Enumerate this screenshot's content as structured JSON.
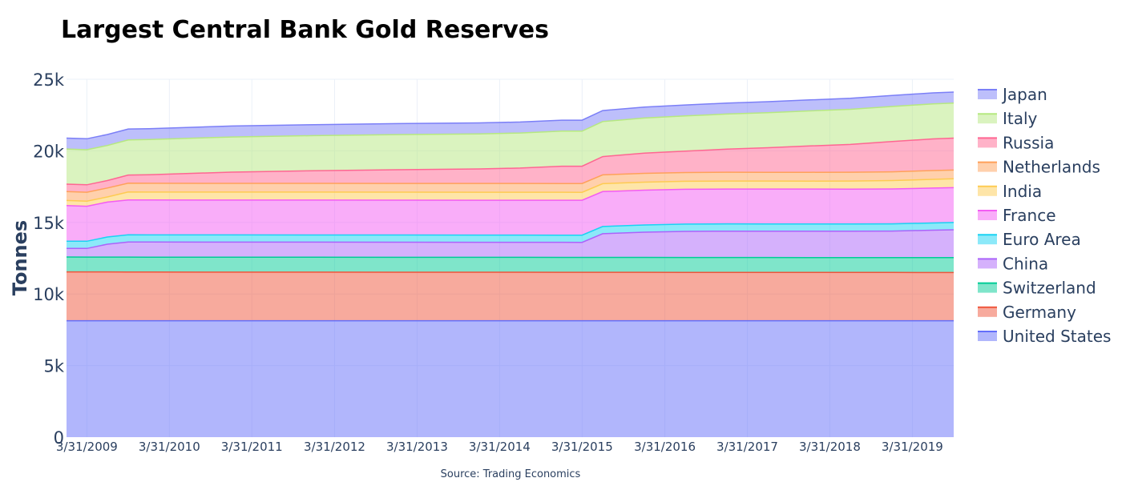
{
  "chart_data": {
    "type": "area",
    "stacked": true,
    "title": "Largest Central Bank Gold Reserves",
    "ylabel": "Tonnes",
    "source": "Source: Trading Economics",
    "ylim": [
      0,
      25000
    ],
    "y_ticks": [
      0,
      5000,
      10000,
      15000,
      20000,
      25000
    ],
    "y_tick_labels": [
      "0",
      "5k",
      "10k",
      "15k",
      "20k",
      "25k"
    ],
    "x_range": [
      "2008-12-31",
      "2019-09-30"
    ],
    "x_ticks": [
      "2009-03-31",
      "2010-03-31",
      "2011-03-31",
      "2012-03-31",
      "2013-03-31",
      "2014-03-31",
      "2015-03-31",
      "2016-03-31",
      "2017-03-31",
      "2018-03-31",
      "2019-03-31"
    ],
    "x_tick_labels": [
      "3/31/2009",
      "3/31/2010",
      "3/31/2011",
      "3/31/2012",
      "3/31/2013",
      "3/31/2014",
      "3/31/2015",
      "3/31/2016",
      "3/31/2017",
      "3/31/2018",
      "3/31/2019"
    ],
    "grid": true,
    "legend_position": "right",
    "x": [
      "2008-12-31",
      "2009-03-31",
      "2009-06-30",
      "2009-09-30",
      "2009-12-31",
      "2010-12-31",
      "2011-12-31",
      "2012-12-31",
      "2013-12-31",
      "2014-06-30",
      "2014-12-31",
      "2015-03-31",
      "2015-06-30",
      "2015-12-31",
      "2016-06-30",
      "2016-12-31",
      "2017-06-30",
      "2017-12-31",
      "2018-06-30",
      "2018-12-31",
      "2019-06-30",
      "2019-09-30"
    ],
    "series": [
      {
        "name": "United States",
        "color": "#636efa",
        "values": [
          8133,
          8133,
          8133,
          8133,
          8133,
          8133,
          8133,
          8133,
          8133,
          8133,
          8133,
          8133,
          8133,
          8133,
          8133,
          8133,
          8133,
          8133,
          8133,
          8133,
          8133,
          8133
        ]
      },
      {
        "name": "Germany",
        "color": "#ef553b",
        "values": [
          3412,
          3408,
          3408,
          3406,
          3400,
          3396,
          3395,
          3391,
          3387,
          3386,
          3384,
          3383,
          3383,
          3381,
          3379,
          3378,
          3375,
          3374,
          3372,
          3370,
          3368,
          3367
        ]
      },
      {
        "name": "Switzerland",
        "color": "#00cc96",
        "values": [
          1040,
          1040,
          1040,
          1040,
          1040,
          1040,
          1040,
          1040,
          1040,
          1040,
          1040,
          1040,
          1040,
          1040,
          1040,
          1040,
          1040,
          1040,
          1040,
          1040,
          1040,
          1040
        ]
      },
      {
        "name": "China",
        "color": "#ab63fa",
        "values": [
          600,
          600,
          900,
          1054,
          1054,
          1054,
          1054,
          1054,
          1054,
          1054,
          1054,
          1054,
          1658,
          1762,
          1823,
          1842,
          1842,
          1842,
          1842,
          1852,
          1916,
          1948
        ]
      },
      {
        "name": "Euro Area",
        "color": "#19d3f3",
        "values": [
          502,
          502,
          502,
          502,
          502,
          502,
          502,
          502,
          502,
          502,
          502,
          502,
          502,
          505,
          505,
          505,
          505,
          505,
          505,
          505,
          505,
          505
        ]
      },
      {
        "name": "France",
        "color": "#f35cf3",
        "values": [
          2487,
          2446,
          2440,
          2435,
          2435,
          2435,
          2435,
          2435,
          2435,
          2435,
          2435,
          2435,
          2435,
          2435,
          2435,
          2435,
          2436,
          2436,
          2436,
          2436,
          2436,
          2436
        ]
      },
      {
        "name": "India",
        "color": "#fecb52",
        "values": [
          358,
          358,
          358,
          558,
          558,
          558,
          558,
          558,
          558,
          558,
          558,
          558,
          558,
          558,
          558,
          558,
          558,
          558,
          565,
          587,
          613,
          618
        ]
      },
      {
        "name": "Netherlands",
        "color": "#ffa15a",
        "values": [
          622,
          622,
          622,
          613,
          613,
          613,
          613,
          613,
          613,
          613,
          613,
          613,
          613,
          613,
          613,
          613,
          613,
          613,
          613,
          613,
          613,
          613
        ]
      },
      {
        "name": "Russia",
        "color": "#ff6692",
        "values": [
          520,
          520,
          520,
          568,
          600,
          784,
          883,
          956,
          1013,
          1075,
          1208,
          1208,
          1275,
          1415,
          1500,
          1615,
          1716,
          1838,
          1944,
          2113,
          2207,
          2229
        ]
      },
      {
        "name": "Italy",
        "color": "#b6e880",
        "values": [
          2452,
          2452,
          2452,
          2452,
          2452,
          2452,
          2452,
          2452,
          2452,
          2452,
          2452,
          2452,
          2452,
          2452,
          2452,
          2452,
          2452,
          2452,
          2452,
          2452,
          2452,
          2452
        ]
      },
      {
        "name": "Japan",
        "color": "#7b7ff7",
        "values": [
          765,
          765,
          765,
          765,
          765,
          765,
          765,
          765,
          765,
          765,
          765,
          765,
          765,
          765,
          765,
          765,
          765,
          765,
          765,
          765,
          765,
          765
        ]
      }
    ]
  }
}
